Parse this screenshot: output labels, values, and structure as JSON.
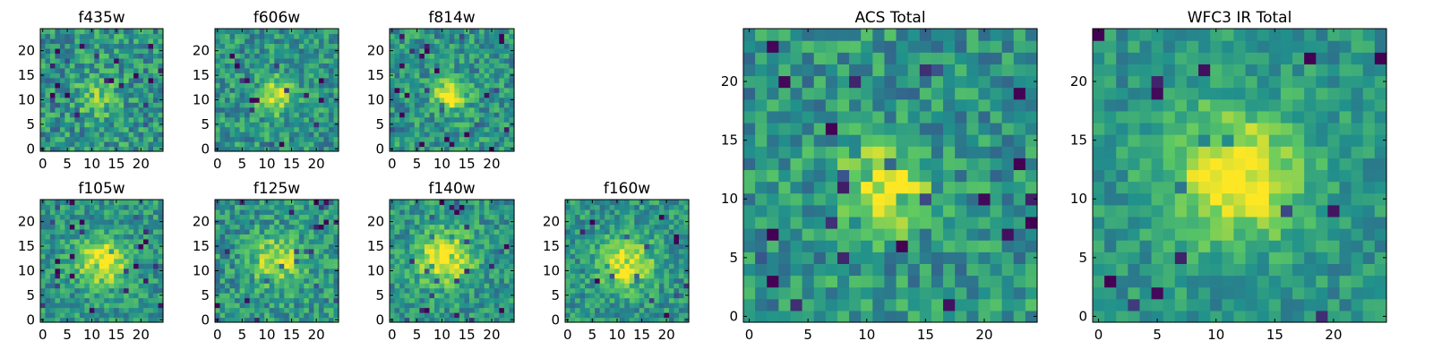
{
  "chart_data": [
    {
      "type": "heatmap",
      "title": "f435w",
      "xticks": [
        "0",
        "5",
        "10",
        "15",
        "20"
      ],
      "yticks": [
        "0",
        "5",
        "10",
        "15",
        "20"
      ],
      "xlim": [
        0,
        25
      ],
      "ylim": [
        0,
        25
      ],
      "colormap": "viridis",
      "source_peak": {
        "x": 11.5,
        "y": 11.5,
        "strength": 0.25,
        "sigma": 3.0
      },
      "noise_level": 0.22
    },
    {
      "type": "heatmap",
      "title": "f606w",
      "xticks": [
        "0",
        "5",
        "10",
        "15",
        "20"
      ],
      "yticks": [
        "0",
        "5",
        "10",
        "15",
        "20"
      ],
      "xlim": [
        0,
        25
      ],
      "ylim": [
        0,
        25
      ],
      "colormap": "viridis",
      "source_peak": {
        "x": 12.5,
        "y": 11.5,
        "strength": 0.45,
        "sigma": 2.5
      },
      "noise_level": 0.2
    },
    {
      "type": "heatmap",
      "title": "f814w",
      "xticks": [
        "0",
        "5",
        "10",
        "15",
        "20"
      ],
      "yticks": [
        "0",
        "5",
        "10",
        "15",
        "20"
      ],
      "xlim": [
        0,
        25
      ],
      "ylim": [
        0,
        25
      ],
      "colormap": "viridis",
      "source_peak": {
        "x": 12.0,
        "y": 11.5,
        "strength": 0.5,
        "sigma": 2.3
      },
      "noise_level": 0.2
    },
    {
      "type": "heatmap",
      "title": "f105w",
      "xticks": [
        "0",
        "5",
        "10",
        "15",
        "20"
      ],
      "yticks": [
        "0",
        "5",
        "10",
        "15",
        "20"
      ],
      "xlim": [
        0,
        25
      ],
      "ylim": [
        0,
        25
      ],
      "colormap": "viridis",
      "source_peak": {
        "x": 12.5,
        "y": 12.5,
        "strength": 0.5,
        "sigma": 3.5
      },
      "noise_level": 0.18
    },
    {
      "type": "heatmap",
      "title": "f125w",
      "xticks": [
        "0",
        "5",
        "10",
        "15",
        "20"
      ],
      "yticks": [
        "0",
        "5",
        "10",
        "15",
        "20"
      ],
      "xlim": [
        0,
        25
      ],
      "ylim": [
        0,
        25
      ],
      "colormap": "viridis",
      "source_peak": {
        "x": 12.5,
        "y": 12.5,
        "strength": 0.4,
        "sigma": 3.5
      },
      "noise_level": 0.2
    },
    {
      "type": "heatmap",
      "title": "f140w",
      "xticks": [
        "0",
        "5",
        "10",
        "15",
        "20"
      ],
      "yticks": [
        "0",
        "5",
        "10",
        "15",
        "20"
      ],
      "xlim": [
        0,
        25
      ],
      "ylim": [
        0,
        25
      ],
      "colormap": "viridis",
      "source_peak": {
        "x": 11.0,
        "y": 13.0,
        "strength": 0.5,
        "sigma": 3.8
      },
      "noise_level": 0.18
    },
    {
      "type": "heatmap",
      "title": "f160w",
      "xticks": [
        "0",
        "5",
        "10",
        "15",
        "20"
      ],
      "yticks": [
        "0",
        "5",
        "10",
        "15",
        "20"
      ],
      "xlim": [
        0,
        25
      ],
      "ylim": [
        0,
        25
      ],
      "colormap": "viridis",
      "source_peak": {
        "x": 12.5,
        "y": 12.0,
        "strength": 0.5,
        "sigma": 3.5
      },
      "noise_level": 0.18
    },
    {
      "type": "heatmap",
      "title": "ACS Total",
      "xticks": [
        "0",
        "5",
        "10",
        "15",
        "20"
      ],
      "yticks": [
        "0",
        "5",
        "10",
        "15",
        "20"
      ],
      "xlim": [
        0,
        25
      ],
      "ylim": [
        0,
        25
      ],
      "colormap": "viridis",
      "source_peak": {
        "x": 12.0,
        "y": 11.5,
        "strength": 0.45,
        "sigma": 2.5
      },
      "noise_level": 0.2
    },
    {
      "type": "heatmap",
      "title": "WFC3 IR Total",
      "xticks": [
        "0",
        "5",
        "10",
        "15",
        "20"
      ],
      "yticks": [
        "0",
        "5",
        "10",
        "15",
        "20"
      ],
      "xlim": [
        0,
        25
      ],
      "ylim": [
        0,
        25
      ],
      "colormap": "viridis",
      "source_peak": {
        "x": 12.0,
        "y": 12.5,
        "strength": 0.55,
        "sigma": 3.8
      },
      "noise_level": 0.14
    }
  ],
  "colors": {
    "viridis_stops": [
      "#440154",
      "#3b528b",
      "#21918c",
      "#5ec962",
      "#fde725"
    ]
  }
}
